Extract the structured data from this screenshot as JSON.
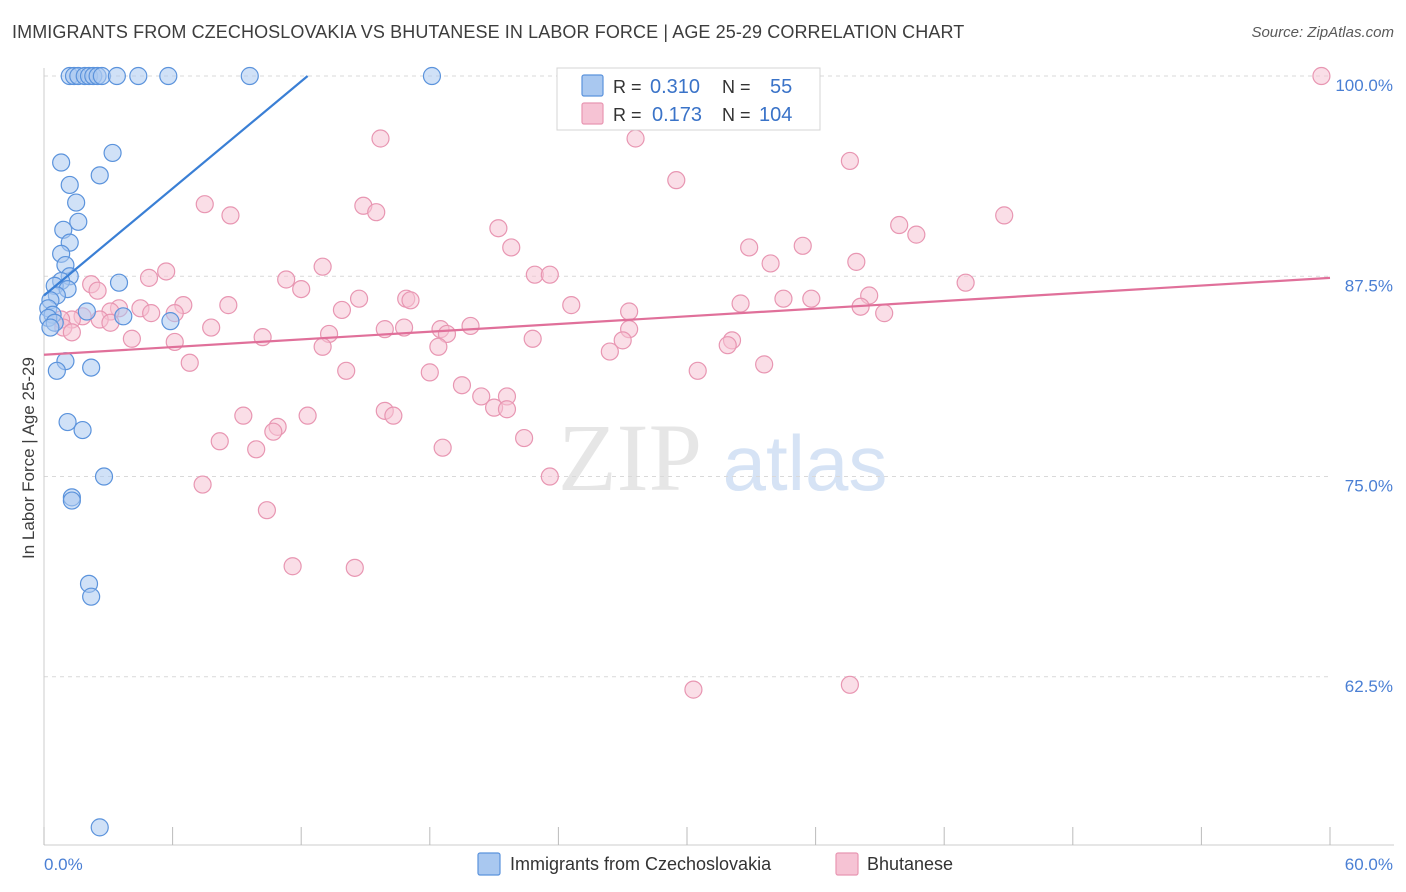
{
  "header": {
    "title": "IMMIGRANTS FROM CZECHOSLOVAKIA VS BHUTANESE IN LABOR FORCE | AGE 25-29 CORRELATION CHART",
    "source": "Source: ZipAtlas.com"
  },
  "colors": {
    "blue": "#5b93dc",
    "blue_fill": "#a9c8f0",
    "blue_line": "#3a7fd5",
    "pink": "#e896b2",
    "pink_fill": "#f6c3d4",
    "pink_line": "#e0709a",
    "grid": "#d9d9d9",
    "tick_text": "#4a7fd4"
  },
  "watermark": {
    "zip": "ZIP",
    "atlas": "atlas"
  },
  "chart_data": {
    "type": "scatter",
    "title": "IMMIGRANTS FROM CZECHOSLOVAKIA VS BHUTANESE IN LABOR FORCE | AGE 25-29 CORRELATION CHART",
    "ylabel": "In Labor Force | Age 25-29",
    "xlabel": "",
    "xlim": [
      0,
      60
    ],
    "ylim": [
      52,
      101
    ],
    "x_tick_labels": [
      "0.0%",
      "60.0%"
    ],
    "y_ticks": [
      62.5,
      75.0,
      87.5,
      100.0
    ],
    "y_tick_labels": [
      "62.5%",
      "75.0%",
      "87.5%",
      "100.0%"
    ],
    "grid": "horizontal dashed",
    "legend": {
      "position": "top-center",
      "rows": [
        {
          "r_label": "R =",
          "r_value": "0.310",
          "n_label": "N =",
          "n_value": "55"
        },
        {
          "r_label": "R =",
          "r_value": "0.173",
          "n_label": "N =",
          "n_value": "104"
        }
      ]
    },
    "series": [
      {
        "name": "Immigrants from Czechoslovakia",
        "color": "#5b93dc",
        "trend": {
          "x": [
            0.0,
            12.3
          ],
          "y": [
            86.3,
            100.0
          ]
        },
        "points": [
          [
            1.2,
            100
          ],
          [
            1.4,
            100
          ],
          [
            1.6,
            100
          ],
          [
            1.9,
            100
          ],
          [
            2.1,
            100
          ],
          [
            2.3,
            100
          ],
          [
            2.5,
            100
          ],
          [
            2.7,
            100
          ],
          [
            3.4,
            100
          ],
          [
            4.4,
            100
          ],
          [
            5.8,
            100
          ],
          [
            9.6,
            100
          ],
          [
            18.1,
            100
          ],
          [
            3.2,
            95.2
          ],
          [
            0.8,
            94.6
          ],
          [
            2.6,
            93.8
          ],
          [
            1.2,
            93.2
          ],
          [
            1.5,
            92.1
          ],
          [
            1.6,
            90.9
          ],
          [
            0.9,
            90.4
          ],
          [
            1.2,
            89.6
          ],
          [
            0.8,
            88.9
          ],
          [
            1.0,
            88.2
          ],
          [
            1.2,
            87.5
          ],
          [
            0.8,
            87.2
          ],
          [
            0.5,
            86.9
          ],
          [
            3.5,
            87.1
          ],
          [
            1.1,
            86.7
          ],
          [
            0.6,
            86.3
          ],
          [
            0.3,
            86.0
          ],
          [
            0.2,
            85.5
          ],
          [
            2.0,
            85.3
          ],
          [
            0.4,
            85.1
          ],
          [
            0.2,
            84.9
          ],
          [
            0.5,
            84.6
          ],
          [
            0.3,
            84.3
          ],
          [
            3.7,
            85.0
          ],
          [
            5.9,
            84.7
          ],
          [
            1.0,
            82.2
          ],
          [
            0.6,
            81.6
          ],
          [
            2.2,
            81.8
          ],
          [
            1.1,
            78.4
          ],
          [
            1.8,
            77.9
          ],
          [
            2.8,
            75.0
          ],
          [
            1.3,
            73.7
          ],
          [
            1.3,
            73.5
          ],
          [
            2.1,
            68.3
          ],
          [
            2.2,
            67.5
          ],
          [
            2.6,
            53.1
          ]
        ]
      },
      {
        "name": "Bhutanese",
        "color": "#e896b2",
        "trend": {
          "x": [
            0.0,
            60.0
          ],
          "y": [
            82.6,
            87.4
          ]
        },
        "points": [
          [
            59.6,
            100
          ],
          [
            15.7,
            96.1
          ],
          [
            27.6,
            96.1
          ],
          [
            37.6,
            94.7
          ],
          [
            29.5,
            93.5
          ],
          [
            7.5,
            92.0
          ],
          [
            8.7,
            91.3
          ],
          [
            14.9,
            91.9
          ],
          [
            15.5,
            91.5
          ],
          [
            44.8,
            91.3
          ],
          [
            21.2,
            90.5
          ],
          [
            39.9,
            90.7
          ],
          [
            40.7,
            90.1
          ],
          [
            32.9,
            89.3
          ],
          [
            35.4,
            89.4
          ],
          [
            21.8,
            89.3
          ],
          [
            37.9,
            88.4
          ],
          [
            13.0,
            88.1
          ],
          [
            33.9,
            88.3
          ],
          [
            5.7,
            87.8
          ],
          [
            11.3,
            87.3
          ],
          [
            22.9,
            87.6
          ],
          [
            23.6,
            87.6
          ],
          [
            43.0,
            87.1
          ],
          [
            4.9,
            87.4
          ],
          [
            2.2,
            87.0
          ],
          [
            12.0,
            86.7
          ],
          [
            2.5,
            86.6
          ],
          [
            38.5,
            86.3
          ],
          [
            14.7,
            86.1
          ],
          [
            16.9,
            86.1
          ],
          [
            17.1,
            86.0
          ],
          [
            32.5,
            85.8
          ],
          [
            34.5,
            86.1
          ],
          [
            35.8,
            86.1
          ],
          [
            24.6,
            85.7
          ],
          [
            8.6,
            85.7
          ],
          [
            38.1,
            85.6
          ],
          [
            6.5,
            85.7
          ],
          [
            4.5,
            85.5
          ],
          [
            3.5,
            85.5
          ],
          [
            6.1,
            85.2
          ],
          [
            5.0,
            85.2
          ],
          [
            3.1,
            85.3
          ],
          [
            13.9,
            85.4
          ],
          [
            27.3,
            85.3
          ],
          [
            39.2,
            85.2
          ],
          [
            1.8,
            85.0
          ],
          [
            1.3,
            84.8
          ],
          [
            2.6,
            84.8
          ],
          [
            3.1,
            84.6
          ],
          [
            0.8,
            84.8
          ],
          [
            0.9,
            84.3
          ],
          [
            7.8,
            84.3
          ],
          [
            15.9,
            84.2
          ],
          [
            16.8,
            84.3
          ],
          [
            19.9,
            84.4
          ],
          [
            18.5,
            84.2
          ],
          [
            1.3,
            84.0
          ],
          [
            27.3,
            84.2
          ],
          [
            13.3,
            83.9
          ],
          [
            18.8,
            83.9
          ],
          [
            10.2,
            83.7
          ],
          [
            22.8,
            83.6
          ],
          [
            32.1,
            83.5
          ],
          [
            4.1,
            83.6
          ],
          [
            27.0,
            83.5
          ],
          [
            6.1,
            83.4
          ],
          [
            31.9,
            83.2
          ],
          [
            18.4,
            83.1
          ],
          [
            13.0,
            83.1
          ],
          [
            26.4,
            82.8
          ],
          [
            6.8,
            82.1
          ],
          [
            33.6,
            82.0
          ],
          [
            30.5,
            81.6
          ],
          [
            14.1,
            81.6
          ],
          [
            18.0,
            81.5
          ],
          [
            19.5,
            80.7
          ],
          [
            20.4,
            80.0
          ],
          [
            21.6,
            80.0
          ],
          [
            15.9,
            79.1
          ],
          [
            9.3,
            78.8
          ],
          [
            16.3,
            78.8
          ],
          [
            12.3,
            78.8
          ],
          [
            21.0,
            79.3
          ],
          [
            21.6,
            79.2
          ],
          [
            10.9,
            78.1
          ],
          [
            10.7,
            77.8
          ],
          [
            22.4,
            77.4
          ],
          [
            8.2,
            77.2
          ],
          [
            9.9,
            76.7
          ],
          [
            18.6,
            76.8
          ],
          [
            23.6,
            75.0
          ],
          [
            7.4,
            74.5
          ],
          [
            10.4,
            72.9
          ],
          [
            11.6,
            69.4
          ],
          [
            14.5,
            69.3
          ],
          [
            30.3,
            61.7
          ],
          [
            37.6,
            62.0
          ]
        ]
      }
    ]
  }
}
